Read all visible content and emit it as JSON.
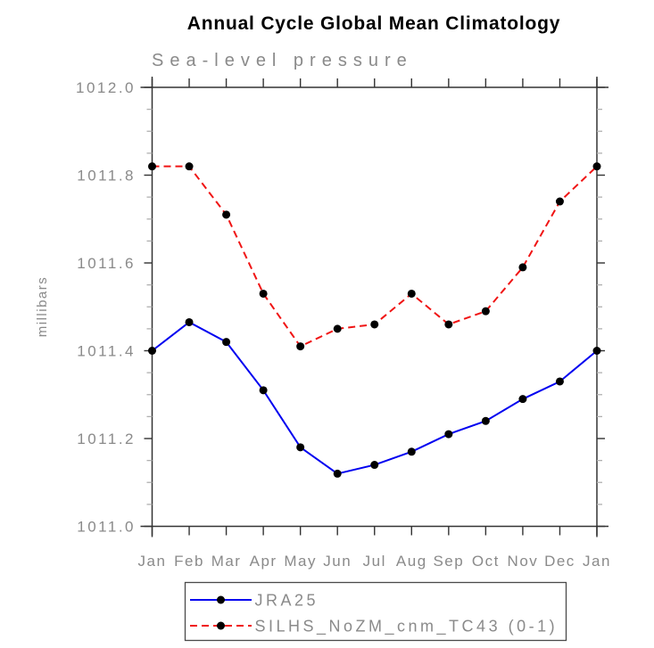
{
  "chart": {
    "title": "Annual Cycle Global Mean Climatology",
    "subtitle": "Sea-level pressure",
    "ylabel": "millibars"
  },
  "chart_data": {
    "type": "line",
    "title": "Annual Cycle Global Mean Climatology",
    "subtitle": "Sea-level pressure",
    "xlabel": "",
    "ylabel": "millibars",
    "categories": [
      "Jan",
      "Feb",
      "Mar",
      "Apr",
      "May",
      "Jun",
      "Jul",
      "Aug",
      "Sep",
      "Oct",
      "Nov",
      "Dec",
      "Jan"
    ],
    "ylim": [
      1011.0,
      1012.0
    ],
    "y_ticks": [
      {
        "value": 1012.0,
        "label": "1012.0"
      },
      {
        "value": 1011.8,
        "label": "1011.8"
      },
      {
        "value": 1011.6,
        "label": "1011.6"
      },
      {
        "value": 1011.4,
        "label": "1011.4"
      },
      {
        "value": 1011.2,
        "label": "1011.2"
      },
      {
        "value": 1011.0,
        "label": "1011.0"
      }
    ],
    "ytick_minor_step": 0.05,
    "grid": false,
    "legend_position": "bottom",
    "series": [
      {
        "name": "JRA25",
        "color": "#0000f0",
        "style": "solid",
        "marker": "filled-circle",
        "marker_color": "#000000",
        "values": [
          1011.4,
          1011.465,
          1011.42,
          1011.31,
          1011.18,
          1011.12,
          1011.14,
          1011.17,
          1011.21,
          1011.24,
          1011.29,
          1011.33,
          1011.4
        ]
      },
      {
        "name": "SILHS_NoZM_cnm_TC43 (0-1)",
        "color": "#f01414",
        "style": "dashed",
        "marker": "filled-circle",
        "marker_color": "#000000",
        "values": [
          1011.82,
          1011.82,
          1011.71,
          1011.53,
          1011.41,
          1011.45,
          1011.46,
          1011.53,
          1011.46,
          1011.49,
          1011.59,
          1011.74,
          1011.82
        ]
      }
    ]
  },
  "palette": {
    "axis": "#333333",
    "minor_tick": "#b0b0b0",
    "label_text": "#8a8a8a",
    "title_text": "#000000",
    "legend_border": "#4a4a4a",
    "background": "#ffffff"
  }
}
